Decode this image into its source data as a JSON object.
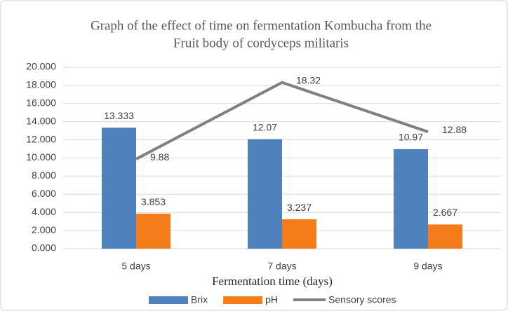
{
  "chart_data": {
    "type": "bar-line",
    "title": [
      "Graph of the effect of time on fermentation Kombucha from the",
      "Fruit body of cordyceps militaris"
    ],
    "x_label": "Fermentation time (days)",
    "categories": [
      "5 days",
      "7 days",
      "9 days"
    ],
    "series": [
      {
        "name": "Brix",
        "type": "bar",
        "color": "#4f81bd",
        "values": [
          13.333,
          12.07,
          10.97
        ]
      },
      {
        "name": "pH",
        "type": "bar",
        "color": "#f47c1a",
        "values": [
          3.853,
          3.237,
          2.667
        ]
      },
      {
        "name": "Sensory scores",
        "type": "line",
        "color": "#808080",
        "values": [
          9.88,
          18.32,
          12.88
        ]
      }
    ],
    "ylim": [
      0,
      20
    ],
    "yticks": [
      {
        "value": 0,
        "label": "0.000"
      },
      {
        "value": 2,
        "label": "2.000"
      },
      {
        "value": 4,
        "label": "4.000"
      },
      {
        "value": 6,
        "label": "6.000"
      },
      {
        "value": 8,
        "label": "8.000"
      },
      {
        "value": 10,
        "label": "10.000"
      },
      {
        "value": 12,
        "label": "12.000"
      },
      {
        "value": 14,
        "label": "14.000"
      },
      {
        "value": 16,
        "label": "16.000"
      },
      {
        "value": 18,
        "label": "18.000"
      },
      {
        "value": 20,
        "label": "20.000"
      }
    ],
    "grid": true,
    "legend": "bottom"
  }
}
